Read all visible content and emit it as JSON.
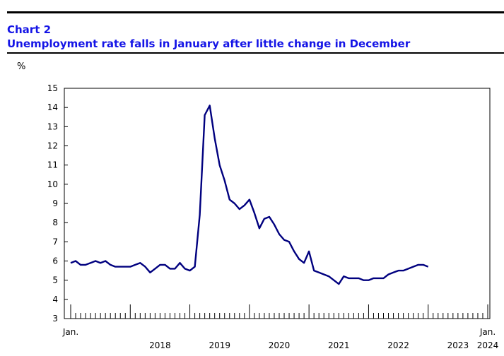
{
  "header": {
    "chart_number": "Chart 2",
    "title": "Unemployment rate falls in January after little change in December",
    "unit": "%"
  },
  "colors": {
    "title": "#1414e6",
    "line": "#00007f",
    "axis": "#000000"
  },
  "chart_data": {
    "type": "line",
    "title": "Unemployment rate falls in January after little change in December",
    "ylabel": "%",
    "xlabel": "",
    "ylim": [
      3,
      15
    ],
    "yticks": [
      3,
      4,
      5,
      6,
      7,
      8,
      9,
      10,
      11,
      12,
      13,
      14,
      15
    ],
    "x_range": [
      "2017-01",
      "2024-01"
    ],
    "grid": false,
    "legend": "none",
    "x_tick_labels": [
      {
        "month": "2017-01",
        "line1": "Jan.",
        "line2": ""
      },
      {
        "month": "2018-07",
        "line1": "",
        "line2": "2018"
      },
      {
        "month": "2019-07",
        "line1": "",
        "line2": "2019"
      },
      {
        "month": "2020-07",
        "line1": "",
        "line2": "2020"
      },
      {
        "month": "2021-07",
        "line1": "",
        "line2": "2021"
      },
      {
        "month": "2022-07",
        "line1": "",
        "line2": "2022"
      },
      {
        "month": "2023-07",
        "line1": "",
        "line2": "2023"
      },
      {
        "month": "2024-01",
        "line1": "Jan.",
        "line2": "2024"
      }
    ],
    "series": [
      {
        "values": [
          [
            "2017-01",
            5.9
          ],
          [
            "2017-02",
            6.0
          ],
          [
            "2017-03",
            5.8
          ],
          [
            "2017-04",
            5.8
          ],
          [
            "2017-05",
            5.9
          ],
          [
            "2017-06",
            6.0
          ],
          [
            "2017-07",
            5.9
          ],
          [
            "2017-08",
            6.0
          ],
          [
            "2017-09",
            5.8
          ],
          [
            "2017-10",
            5.7
          ],
          [
            "2017-11",
            5.7
          ],
          [
            "2017-12",
            5.7
          ],
          [
            "2018-01",
            5.7
          ],
          [
            "2018-02",
            5.8
          ],
          [
            "2018-03",
            5.9
          ],
          [
            "2018-04",
            5.7
          ],
          [
            "2018-05",
            5.4
          ],
          [
            "2018-06",
            5.6
          ],
          [
            "2018-07",
            5.8
          ],
          [
            "2018-08",
            5.8
          ],
          [
            "2018-09",
            5.6
          ],
          [
            "2018-10",
            5.6
          ],
          [
            "2018-11",
            5.9
          ],
          [
            "2018-12",
            5.6
          ],
          [
            "2019-01",
            5.5
          ],
          [
            "2019-02",
            5.7
          ],
          [
            "2019-03",
            8.4
          ],
          [
            "2019-04",
            13.6
          ],
          [
            "2019-05",
            14.1
          ],
          [
            "2019-06",
            12.4
          ],
          [
            "2019-07",
            11.0
          ],
          [
            "2019-08",
            10.2
          ],
          [
            "2019-09",
            9.2
          ],
          [
            "2019-10",
            9.0
          ],
          [
            "2019-11",
            8.7
          ],
          [
            "2019-12",
            8.9
          ],
          [
            "2020-01",
            9.2
          ],
          [
            "2020-02",
            8.5
          ],
          [
            "2020-03",
            7.7
          ],
          [
            "2020-04",
            8.2
          ],
          [
            "2020-05",
            8.3
          ],
          [
            "2020-06",
            7.9
          ],
          [
            "2020-07",
            7.4
          ],
          [
            "2020-08",
            7.1
          ],
          [
            "2020-09",
            7.0
          ],
          [
            "2020-10",
            6.5
          ],
          [
            "2020-11",
            6.1
          ],
          [
            "2020-12",
            5.9
          ],
          [
            "2021-01",
            6.5
          ],
          [
            "2021-02",
            5.5
          ],
          [
            "2021-03",
            5.4
          ],
          [
            "2021-04",
            5.3
          ],
          [
            "2021-05",
            5.2
          ],
          [
            "2021-06",
            5.0
          ],
          [
            "2021-07",
            4.8
          ],
          [
            "2021-08",
            5.2
          ],
          [
            "2021-09",
            5.1
          ],
          [
            "2021-10",
            5.1
          ],
          [
            "2021-11",
            5.1
          ],
          [
            "2021-12",
            5.0
          ],
          [
            "2022-01",
            5.0
          ],
          [
            "2022-02",
            5.1
          ],
          [
            "2022-03",
            5.1
          ],
          [
            "2022-04",
            5.1
          ],
          [
            "2022-05",
            5.3
          ],
          [
            "2022-06",
            5.4
          ],
          [
            "2022-07",
            5.5
          ],
          [
            "2022-08",
            5.5
          ],
          [
            "2022-09",
            5.6
          ],
          [
            "2022-10",
            5.7
          ],
          [
            "2022-11",
            5.8
          ],
          [
            "2022-12",
            5.8
          ],
          [
            "2023-01",
            5.7
          ]
        ]
      }
    ]
  }
}
